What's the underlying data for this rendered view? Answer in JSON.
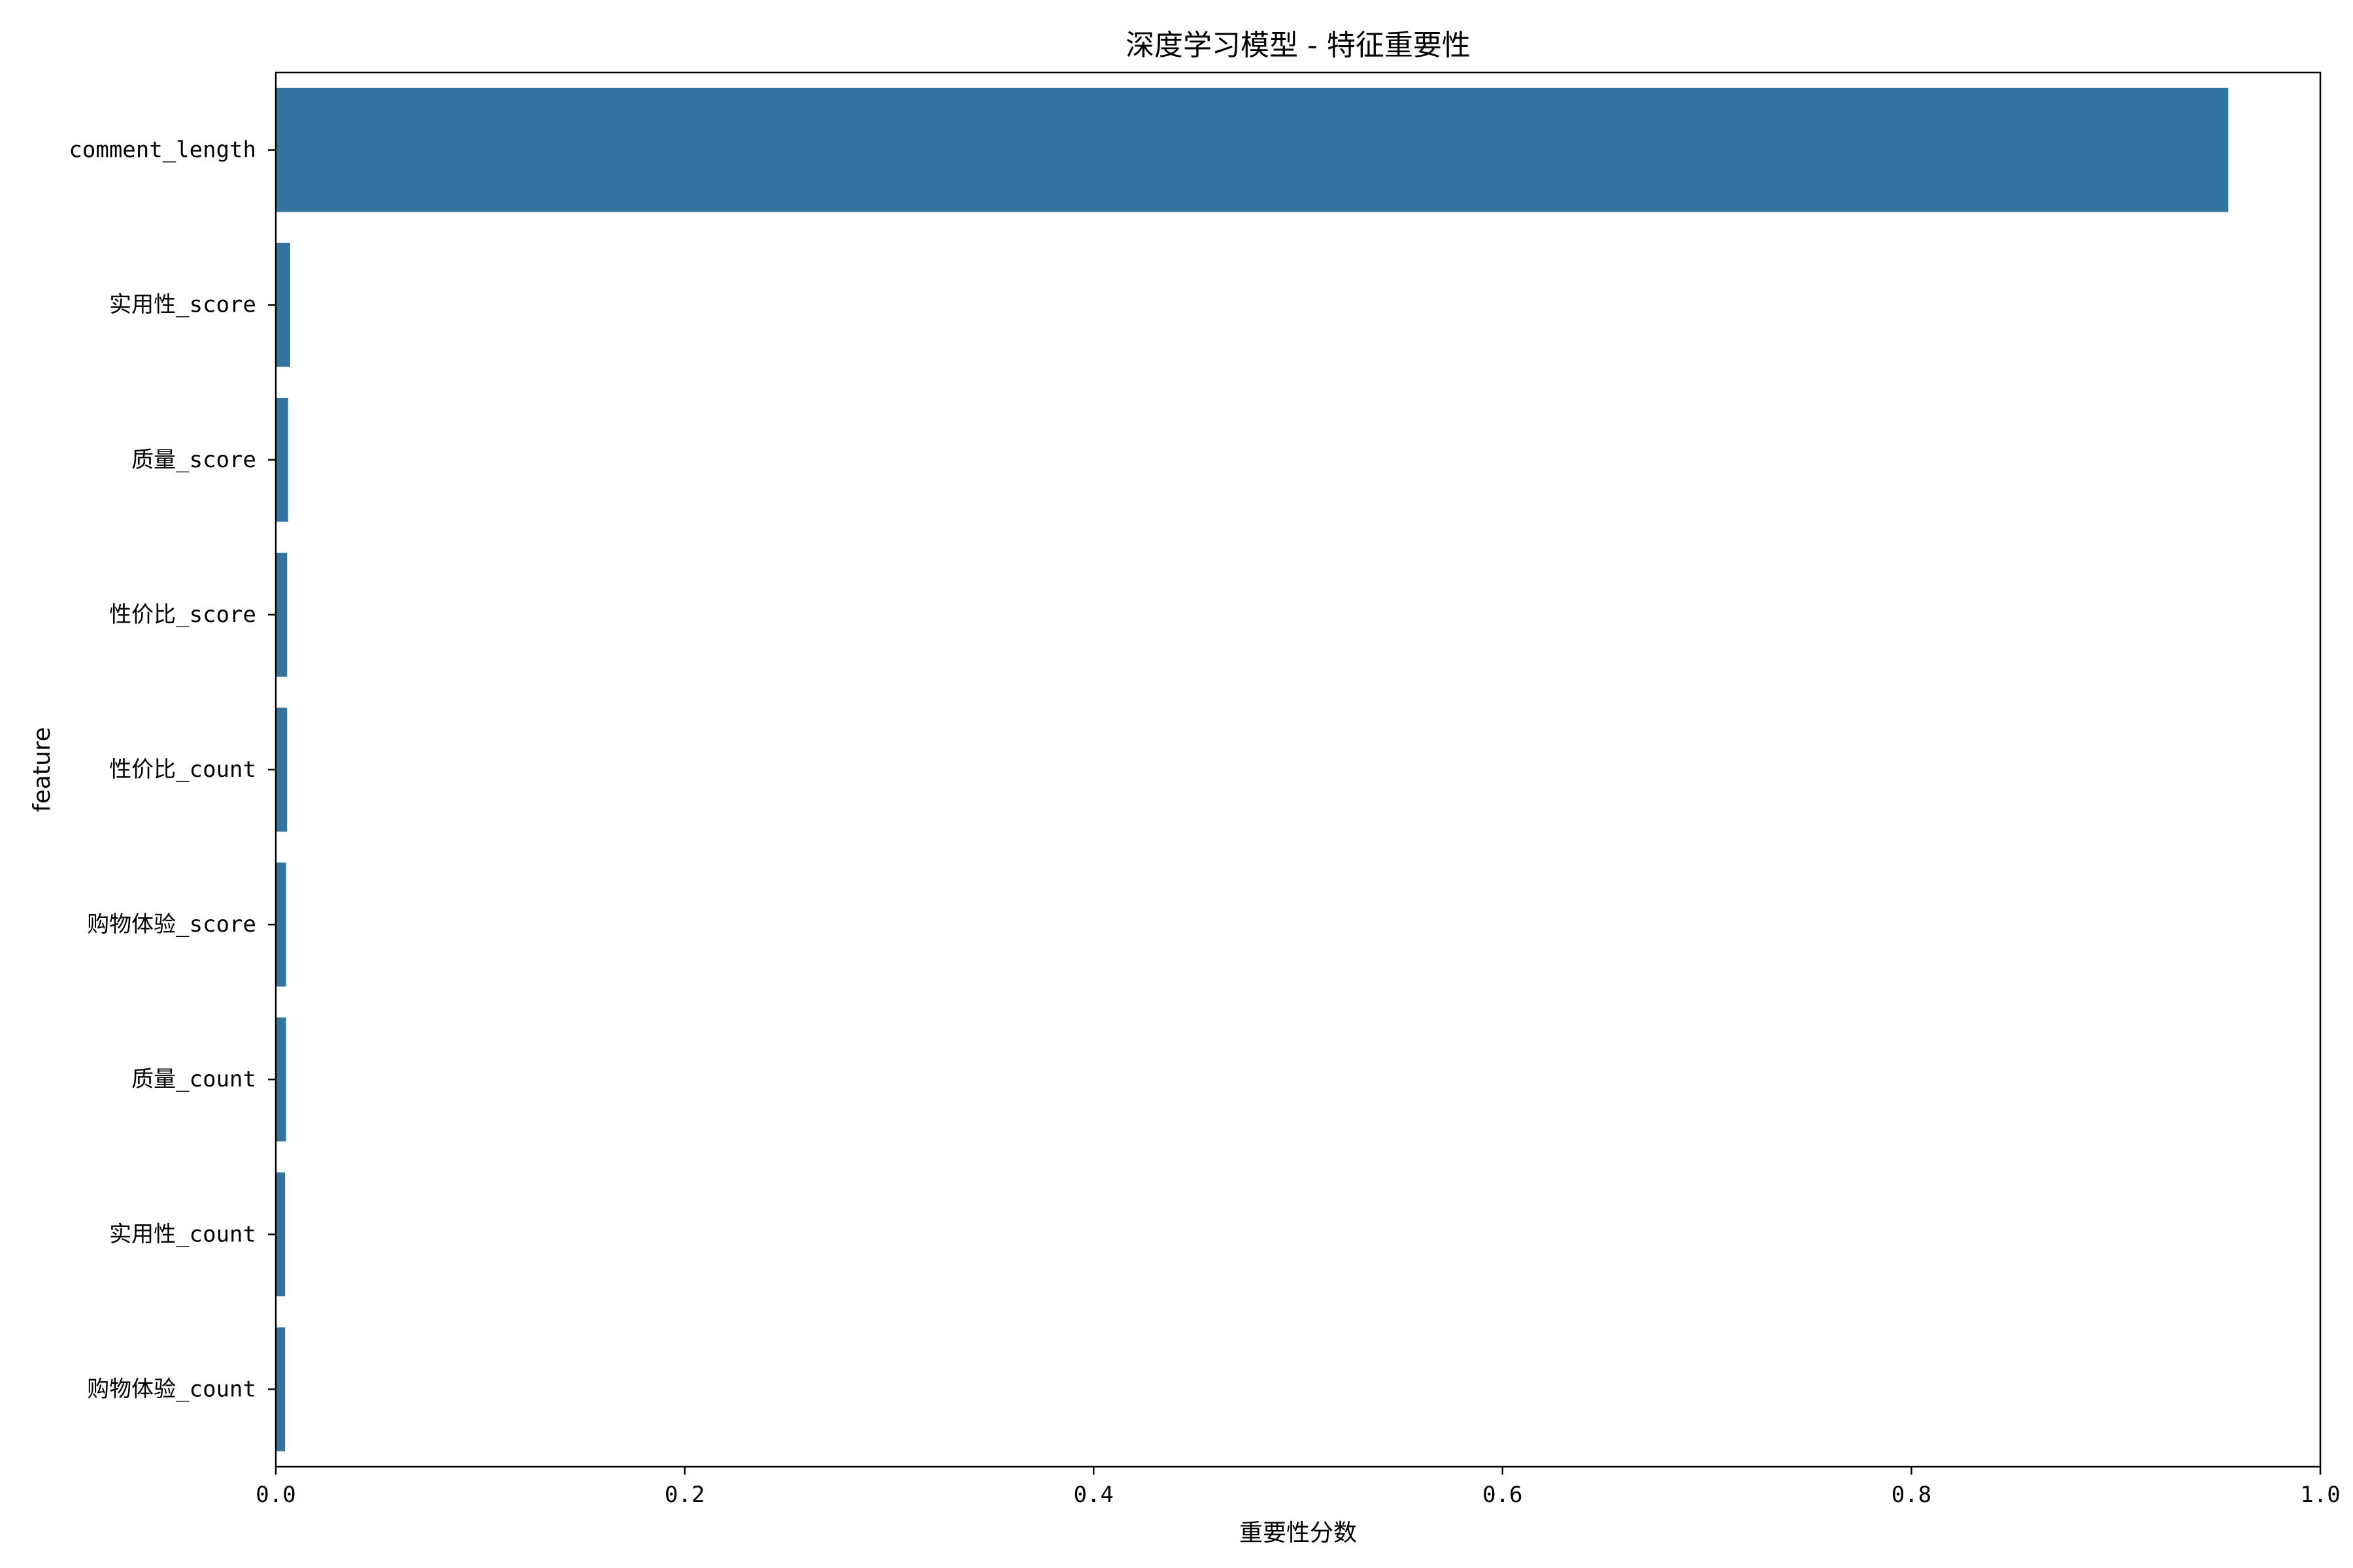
{
  "chart_data": {
    "type": "bar",
    "orientation": "horizontal",
    "title": "深度学习模型 - 特征重要性",
    "xlabel": "重要性分数",
    "ylabel": "feature",
    "xlim": [
      0,
      1.0
    ],
    "xticks": [
      "0.0",
      "0.2",
      "0.4",
      "0.6",
      "0.8",
      "1.0"
    ],
    "categories": [
      "comment_length",
      "实用性_score",
      "质量_score",
      "性价比_score",
      "性价比_count",
      "购物体验_score",
      "质量_count",
      "实用性_count",
      "购物体验_count"
    ],
    "values": [
      0.955,
      0.007,
      0.006,
      0.0055,
      0.0055,
      0.005,
      0.005,
      0.0045,
      0.0045
    ],
    "bar_color": "#3274a1",
    "grid": false,
    "legend": "none"
  }
}
